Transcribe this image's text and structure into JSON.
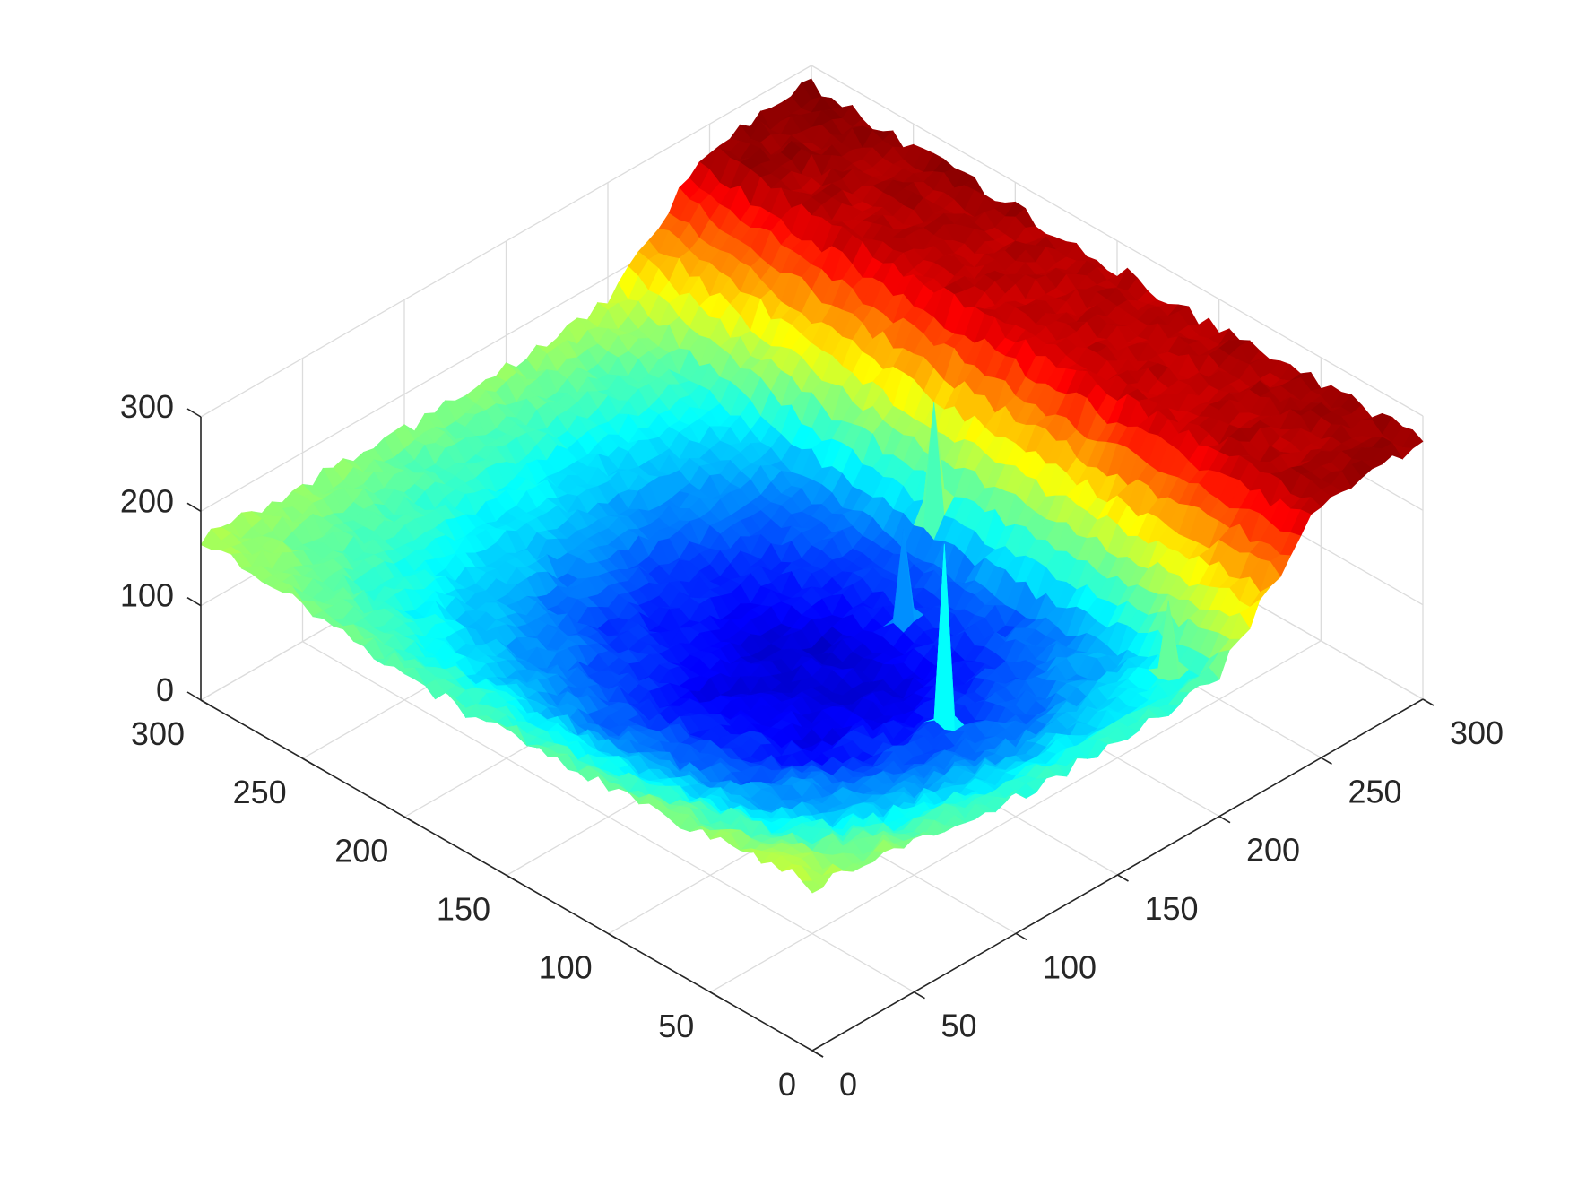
{
  "chart_data": {
    "type": "surface",
    "colormap": "jet",
    "title": "",
    "xlabel": "",
    "ylabel": "",
    "zlabel": "",
    "grid": true,
    "view": "3d-isometric",
    "x_ticks": [
      "0",
      "50",
      "100",
      "150",
      "200",
      "250",
      "300"
    ],
    "y_ticks": [
      "0",
      "50",
      "100",
      "150",
      "200",
      "250",
      "300"
    ],
    "z_ticks": [
      "0",
      "100",
      "200",
      "300"
    ],
    "xlim": [
      0,
      300
    ],
    "ylim": [
      0,
      300
    ],
    "zlim": [
      0,
      300
    ],
    "clim": [
      40,
      280
    ],
    "surface_description": "bowl-shaped basin with minimum near (130,130) about z=55, rising to ~170-190 at rims, and a high plateau (~255-280) across the far edge (large y), with scattered narrow spikes",
    "approx_z_profile": {
      "x_samples": [
        0,
        50,
        100,
        150,
        200,
        250,
        300
      ],
      "y_samples": [
        0,
        50,
        100,
        150,
        200,
        250,
        300
      ],
      "z": [
        [
          175,
          165,
          155,
          150,
          150,
          160,
          170
        ],
        [
          160,
          120,
          100,
          95,
          110,
          135,
          165
        ],
        [
          145,
          100,
          70,
          65,
          85,
          125,
          160
        ],
        [
          140,
          95,
          65,
          60,
          80,
          120,
          165
        ],
        [
          150,
          115,
          95,
          95,
          105,
          135,
          175
        ],
        [
          270,
          265,
          260,
          260,
          262,
          265,
          275
        ],
        [
          275,
          272,
          268,
          270,
          272,
          275,
          280
        ]
      ]
    },
    "spikes": [
      {
        "x": 75,
        "y": 140,
        "z": 270
      },
      {
        "x": 150,
        "y": 210,
        "z": 240
      },
      {
        "x": 210,
        "y": 240,
        "z": 230
      },
      {
        "x": 20,
        "y": 195,
        "z": 210
      },
      {
        "x": 130,
        "y": 175,
        "z": 175
      }
    ]
  }
}
